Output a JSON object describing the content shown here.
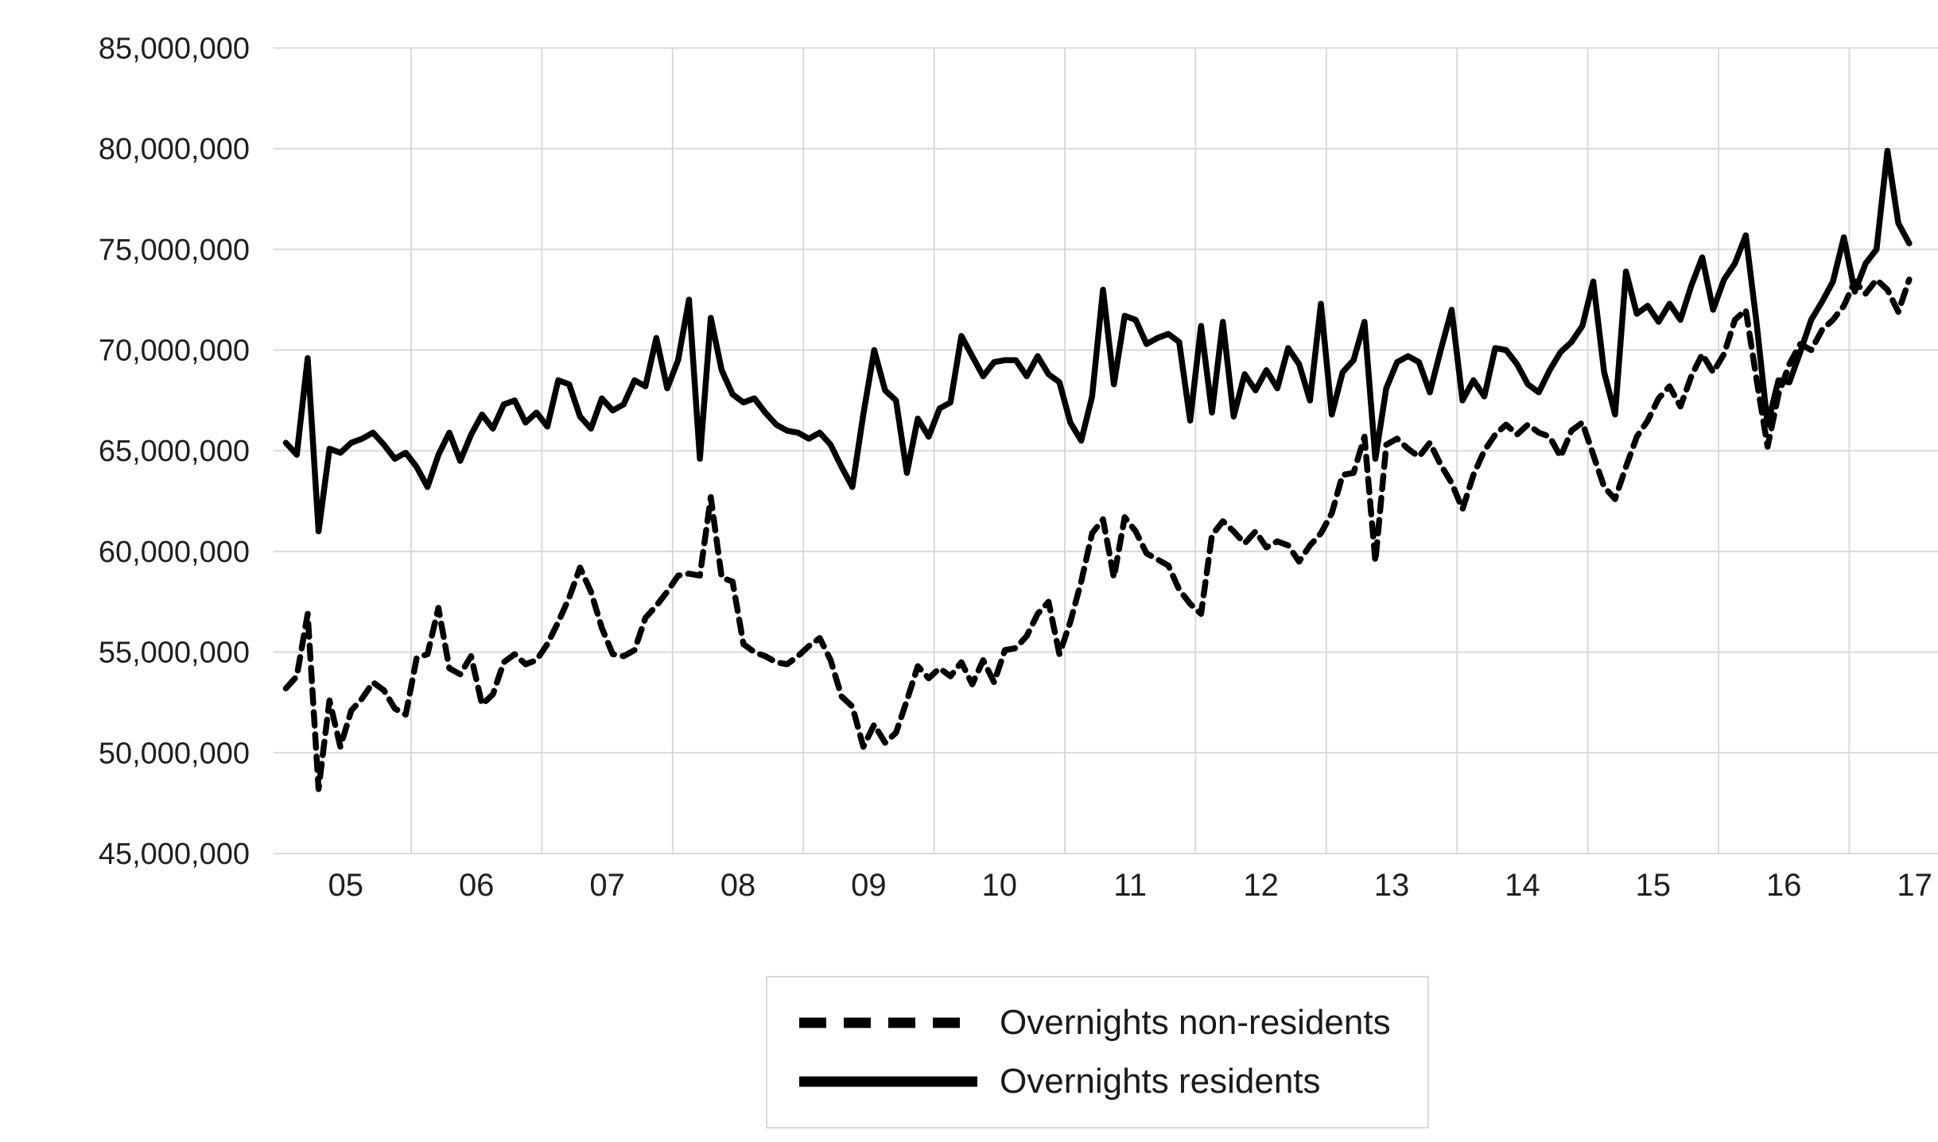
{
  "chart_data": {
    "type": "line",
    "title": "",
    "unit": "overnights per month, values in millions",
    "x_axis": {
      "kind": "monthly time axis",
      "start": "2005-01",
      "end": "2017-06",
      "tick_labels": [
        "05",
        "06",
        "07",
        "08",
        "09",
        "10",
        "11",
        "12",
        "13",
        "14",
        "15",
        "16",
        "17"
      ],
      "gridlines_at_year_boundaries": true
    },
    "y_axis": {
      "min_millions": 45,
      "max_millions": 85,
      "step_millions": 5,
      "tick_labels": [
        "45,000,000",
        "50,000,000",
        "55,000,000",
        "60,000,000",
        "65,000,000",
        "70,000,000",
        "75,000,000",
        "80,000,000",
        "85,000,000"
      ]
    },
    "grid": true,
    "legend": {
      "position": "bottom-center",
      "border": true
    },
    "colors": {
      "line": "#000000",
      "grid": "#d9d9d9",
      "text": "#1f1f1f",
      "background": "#ffffff",
      "legend_border": "#d9d9d9"
    },
    "series": [
      {
        "name": "Overnights non-residents",
        "style": "dashed",
        "values_millions": [
          53.2,
          53.8,
          56.9,
          48.2,
          52.6,
          50.3,
          52.1,
          52.7,
          53.5,
          53.1,
          52.2,
          51.9,
          54.7,
          54.9,
          57.2,
          54.2,
          53.9,
          54.8,
          52.4,
          52.9,
          54.5,
          54.9,
          54.4,
          54.6,
          55.4,
          56.5,
          57.7,
          59.2,
          58.0,
          56.2,
          54.9,
          54.8,
          55.1,
          56.7,
          57.3,
          58.0,
          58.8,
          58.9,
          58.8,
          62.7,
          58.7,
          58.5,
          55.4,
          55.0,
          54.8,
          54.5,
          54.4,
          54.8,
          55.3,
          55.7,
          54.6,
          52.8,
          52.3,
          50.3,
          51.4,
          50.5,
          51.0,
          52.6,
          54.3,
          53.7,
          54.2,
          53.8,
          54.5,
          53.4,
          54.6,
          53.5,
          55.1,
          55.2,
          55.8,
          56.9,
          57.5,
          54.9,
          56.5,
          58.5,
          60.9,
          61.6,
          58.7,
          61.7,
          61.0,
          59.9,
          59.6,
          59.3,
          58.1,
          57.4,
          56.9,
          60.8,
          61.5,
          61.0,
          60.4,
          61.0,
          60.2,
          60.5,
          60.3,
          59.5,
          60.3,
          60.9,
          61.9,
          63.8,
          63.9,
          65.7,
          59.5,
          65.3,
          65.6,
          65.1,
          64.7,
          65.4,
          64.3,
          63.4,
          62.1,
          63.8,
          65.0,
          65.8,
          66.3,
          65.8,
          66.3,
          65.9,
          65.7,
          64.7,
          66.0,
          66.4,
          64.8,
          63.2,
          62.6,
          64.2,
          65.7,
          66.5,
          67.6,
          68.2,
          67.2,
          68.7,
          69.8,
          68.9,
          69.8,
          71.5,
          72.0,
          68.5,
          65.2,
          67.8,
          69.3,
          70.3,
          70.0,
          71.0,
          71.5,
          72.2,
          73.4,
          72.8,
          73.5,
          73.0,
          71.9,
          73.5
        ]
      },
      {
        "name": "Overnights residents",
        "style": "solid",
        "values_millions": [
          65.4,
          64.8,
          69.6,
          61.0,
          65.1,
          64.9,
          65.4,
          65.6,
          65.9,
          65.3,
          64.6,
          64.9,
          64.2,
          63.2,
          64.8,
          65.9,
          64.5,
          65.8,
          66.8,
          66.1,
          67.3,
          67.5,
          66.4,
          66.9,
          66.2,
          68.5,
          68.3,
          66.7,
          66.1,
          67.6,
          67.0,
          67.3,
          68.5,
          68.2,
          70.6,
          68.1,
          69.5,
          72.5,
          64.6,
          71.6,
          69.0,
          67.8,
          67.4,
          67.6,
          66.9,
          66.3,
          66.0,
          65.9,
          65.6,
          65.9,
          65.3,
          64.2,
          63.2,
          66.8,
          70.0,
          68.0,
          67.5,
          63.9,
          66.6,
          65.7,
          67.1,
          67.4,
          70.7,
          69.7,
          68.7,
          69.4,
          69.5,
          69.5,
          68.7,
          69.7,
          68.8,
          68.4,
          66.4,
          65.5,
          67.7,
          73.0,
          68.3,
          71.7,
          71.5,
          70.3,
          70.6,
          70.8,
          70.4,
          66.5,
          71.2,
          66.9,
          71.4,
          66.7,
          68.8,
          68.0,
          69.0,
          68.1,
          70.1,
          69.3,
          67.5,
          72.3,
          66.8,
          68.9,
          69.5,
          71.4,
          64.6,
          68.1,
          69.4,
          69.7,
          69.4,
          67.9,
          70.0,
          72.0,
          67.5,
          68.5,
          67.7,
          70.1,
          70.0,
          69.3,
          68.3,
          67.9,
          69.0,
          69.9,
          70.4,
          71.2,
          73.4,
          68.9,
          66.8,
          73.9,
          71.8,
          72.2,
          71.4,
          72.3,
          71.5,
          73.2,
          74.6,
          72.0,
          73.5,
          74.3,
          75.7,
          71.3,
          66.3,
          68.5,
          68.4,
          69.9,
          71.5,
          72.4,
          73.4,
          75.6,
          72.9,
          74.3,
          75.0,
          79.9,
          76.3,
          75.3
        ]
      }
    ]
  },
  "legend": {
    "items": [
      {
        "label": "Overnights non-residents"
      },
      {
        "label": "Overnights residents"
      }
    ]
  }
}
